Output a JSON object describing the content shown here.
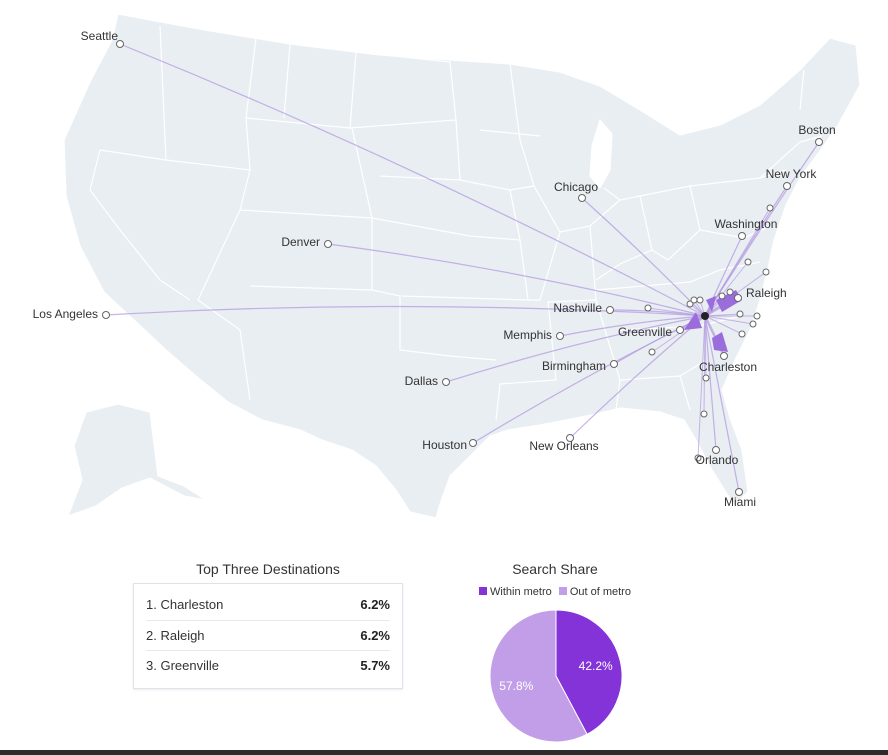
{
  "map": {
    "cities": [
      {
        "name": "Seattle"
      },
      {
        "name": "Boston"
      },
      {
        "name": "New York"
      },
      {
        "name": "Chicago"
      },
      {
        "name": "Washington"
      },
      {
        "name": "Denver"
      },
      {
        "name": "Raleigh"
      },
      {
        "name": "Los Angeles"
      },
      {
        "name": "Nashville"
      },
      {
        "name": "Greenville"
      },
      {
        "name": "Memphis"
      },
      {
        "name": "Birmingham"
      },
      {
        "name": "Charleston"
      },
      {
        "name": "Dallas"
      },
      {
        "name": "Houston"
      },
      {
        "name": "New Orleans"
      },
      {
        "name": "Orlando"
      },
      {
        "name": "Miami"
      }
    ]
  },
  "top_destinations": {
    "title": "Top Three Destinations",
    "items": [
      {
        "label": "1. Charleston",
        "value": "6.2%"
      },
      {
        "label": "2. Raleigh",
        "value": "6.2%"
      },
      {
        "label": "3. Greenville",
        "value": "5.7%"
      }
    ]
  },
  "search_share": {
    "title": "Search Share",
    "legend": [
      {
        "label": "Within metro",
        "color": "#8333d8"
      },
      {
        "label": "Out of metro",
        "color": "#c39ee8"
      }
    ],
    "chart_data": {
      "type": "pie",
      "slices": [
        {
          "label": "Within metro",
          "value": 42.2,
          "text": "42.2%",
          "color": "#8333d8"
        },
        {
          "label": "Out of metro",
          "value": 57.8,
          "text": "57.8%",
          "color": "#c39ee8"
        }
      ]
    }
  }
}
